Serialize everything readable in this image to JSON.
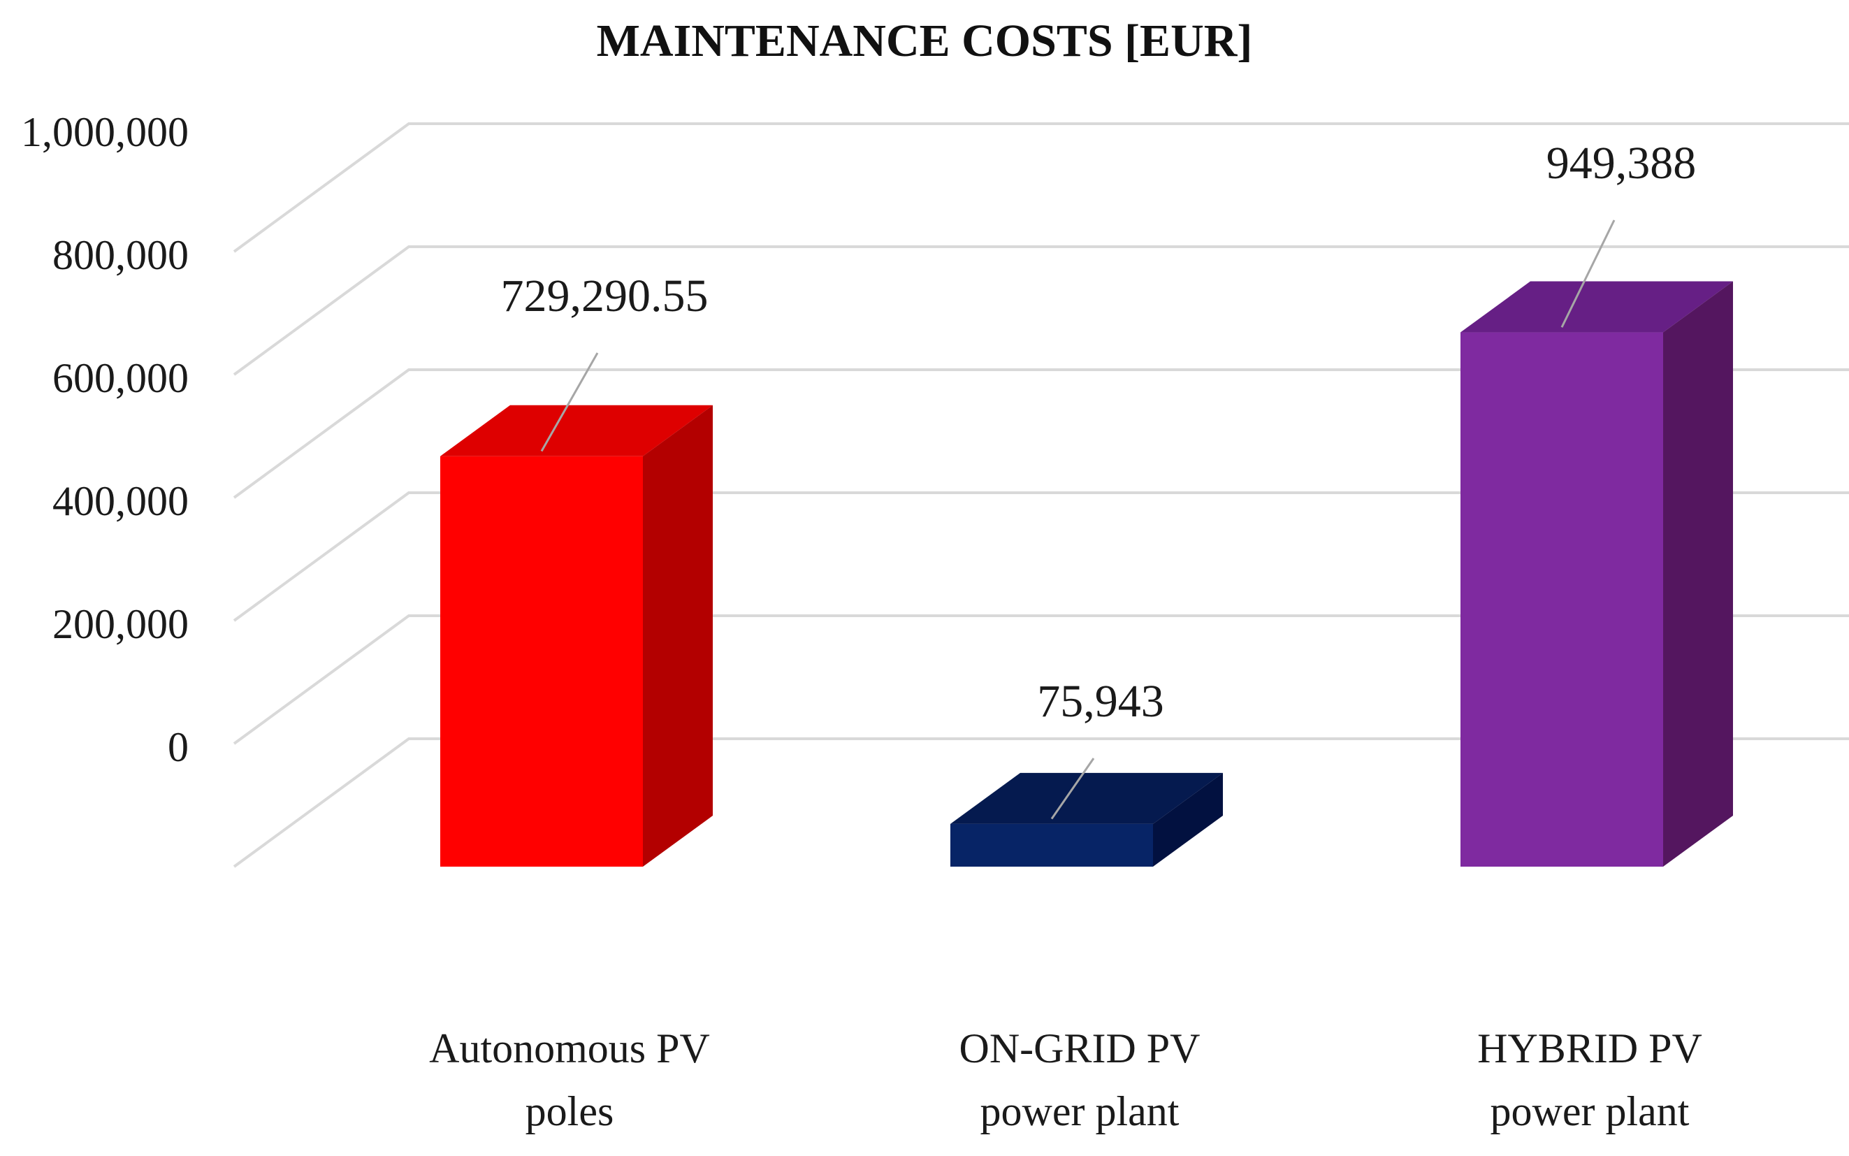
{
  "chart_data": {
    "type": "bar",
    "title": "MAINTENANCE COSTS [EUR]",
    "xlabel": "",
    "ylabel": "",
    "ylim": [
      0,
      1000000
    ],
    "yticks": [
      0,
      200000,
      400000,
      600000,
      800000,
      1000000
    ],
    "ytick_labels": [
      "0",
      "200,000",
      "400,000",
      "600,000",
      "800,000",
      "1,000,000"
    ],
    "grid": true,
    "legend": "none",
    "categories": [
      [
        "Autonomous PV",
        "poles"
      ],
      [
        "ON-GRID PV",
        "power plant"
      ],
      [
        "HYBRID PV",
        "power plant"
      ]
    ],
    "values": [
      729290.55,
      75943,
      949388
    ],
    "value_labels": [
      "729,290.55",
      "75,943",
      "949,388"
    ],
    "colors": [
      {
        "front": "#ff0000",
        "top": "#de0000",
        "side": "#b30000"
      },
      {
        "front": "#072466",
        "top": "#051a4f",
        "side": "#021140"
      },
      {
        "front": "#7f2aa0",
        "top": "#661f85",
        "side": "#54165f"
      }
    ]
  }
}
